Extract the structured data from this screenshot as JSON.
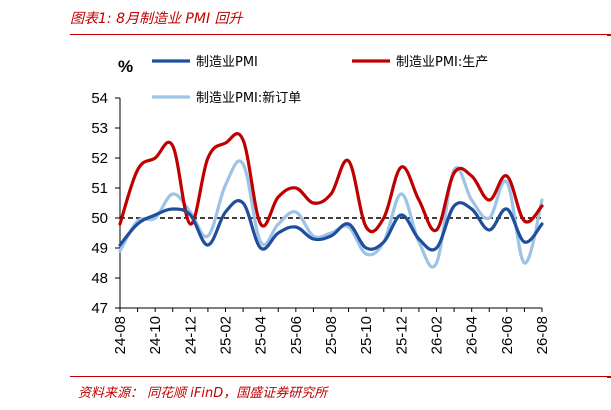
{
  "header": {
    "title": "图表1:  8月制造业 PMI 回升"
  },
  "source": {
    "text": "资料来源：  同花顺 iFinD，国盛证券研究所"
  },
  "chart_data": {
    "type": "line",
    "unit_label": "%",
    "title": "",
    "xlabel": "",
    "ylabel": "",
    "ylim": [
      47,
      54
    ],
    "yticks": [
      "47",
      "48",
      "49",
      "50",
      "51",
      "52",
      "53",
      "54"
    ],
    "x_tick_labels": [
      "24-08",
      "24-10",
      "24-12",
      "25-02",
      "25-04",
      "25-06",
      "25-08",
      "25-10",
      "25-12",
      "26-02",
      "26-04",
      "26-06",
      "26-08"
    ],
    "x": [
      "24-08",
      "24-09",
      "24-10",
      "24-11",
      "24-12",
      "25-01",
      "25-02",
      "25-03",
      "25-04",
      "25-05",
      "25-06",
      "25-07",
      "25-08",
      "25-09",
      "25-10",
      "25-11",
      "25-12",
      "26-01",
      "26-02",
      "26-03",
      "26-04",
      "26-05",
      "26-06",
      "26-07",
      "26-08"
    ],
    "reference_line": {
      "value": 50,
      "style": "dashed"
    },
    "grid": false,
    "legend_placement": "top",
    "series": [
      {
        "name": "制造业PMI",
        "color": "#1f4e9c",
        "values": [
          49.1,
          49.8,
          50.1,
          50.3,
          50.1,
          49.1,
          50.2,
          50.5,
          49.0,
          49.5,
          49.7,
          49.3,
          49.4,
          49.8,
          49.0,
          49.2,
          50.1,
          49.3,
          49.0,
          50.4,
          50.3,
          49.6,
          50.3,
          49.2,
          49.8
        ]
      },
      {
        "name": "制造业PMI:生产",
        "color": "#c00000",
        "values": [
          49.8,
          51.6,
          52.0,
          52.4,
          49.8,
          52.0,
          52.5,
          52.6,
          49.8,
          50.7,
          51.0,
          50.5,
          50.8,
          51.9,
          49.7,
          50.0,
          51.7,
          50.6,
          49.6,
          51.5,
          51.4,
          50.6,
          51.4,
          49.9,
          50.4
        ]
      },
      {
        "name": "制造业PMI:新订单",
        "color": "#9dc3e6",
        "values": [
          48.9,
          49.9,
          50.0,
          50.8,
          50.2,
          49.4,
          51.1,
          51.8,
          49.2,
          49.8,
          50.2,
          49.4,
          49.5,
          49.7,
          48.8,
          49.2,
          50.8,
          49.2,
          48.5,
          51.6,
          50.6,
          50.0,
          51.2,
          48.5,
          50.6
        ]
      }
    ]
  }
}
